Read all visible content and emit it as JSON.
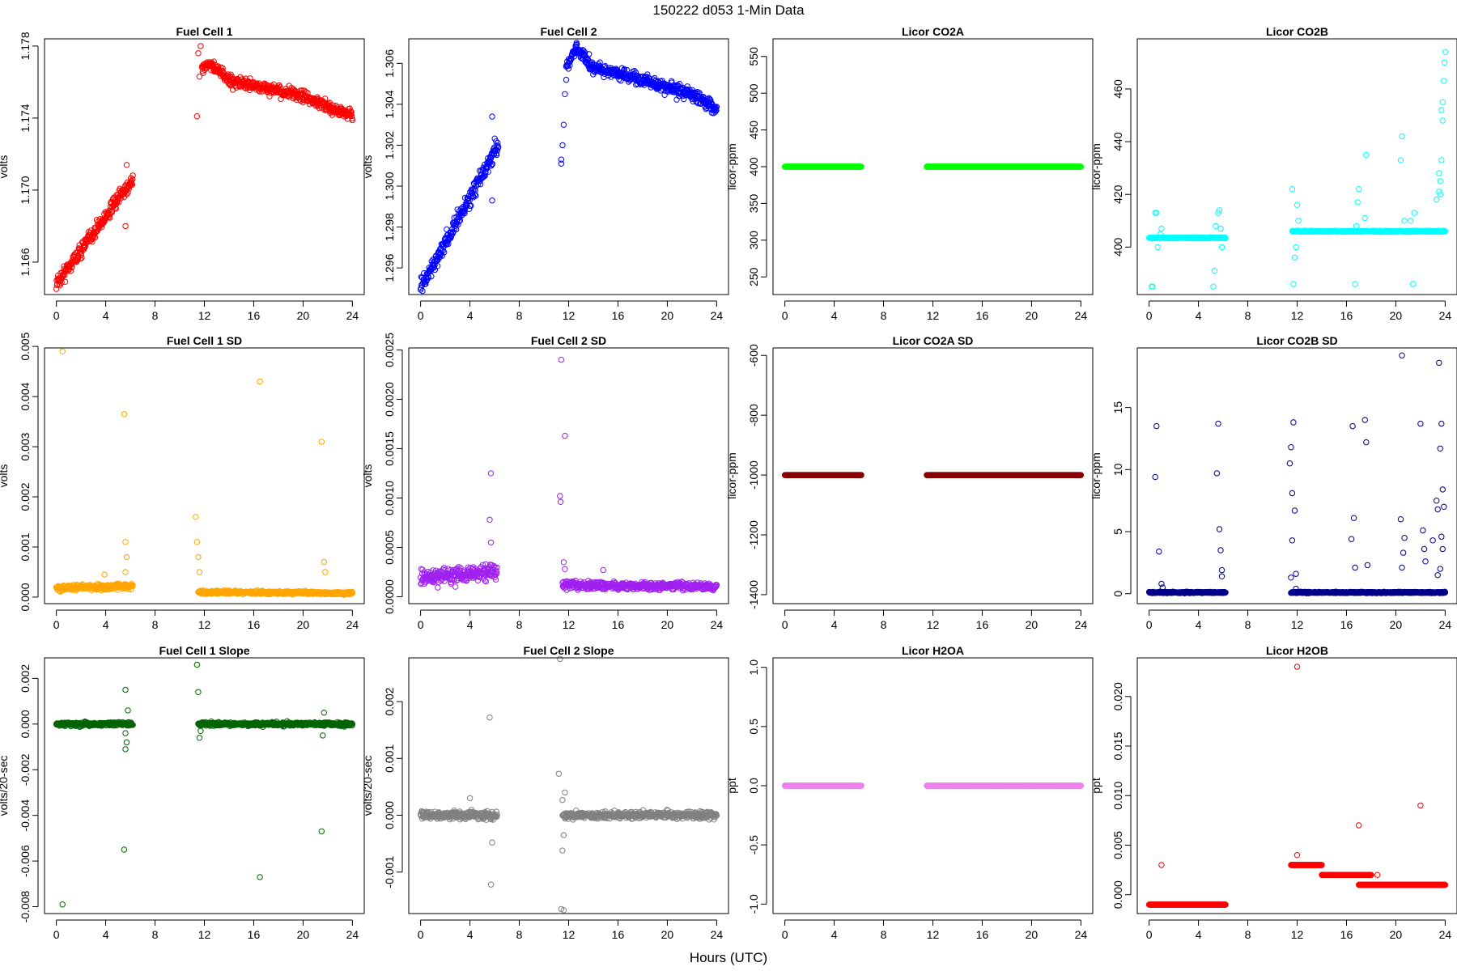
{
  "page": {
    "title": "150222   d053   1-Min Data",
    "xaxis_title": "Hours (UTC)"
  },
  "chart_data": [
    {
      "type": "scatter",
      "title": "Fuel Cell 1",
      "ylabel": "volts",
      "color": "#ff0000",
      "xlim": [
        -0.96,
        24.96
      ],
      "ylim": [
        1.1642,
        1.1784
      ],
      "yticks": [
        1.166,
        1.17,
        1.174,
        1.178
      ],
      "ytick_labels": [
        "1.166",
        "1.170",
        "1.174",
        "1.178"
      ],
      "segments": [
        {
          "x0": 0,
          "x1": 6.2,
          "y0": 1.1648,
          "y1": 1.1706,
          "noise": 0.0004
        },
        {
          "x0": 11.8,
          "x1": 24,
          "curve": [
            [
              11.8,
              1.1768
            ],
            [
              12.5,
              1.177
            ],
            [
              14,
              1.1761
            ],
            [
              16,
              1.1758
            ],
            [
              18,
              1.1755
            ],
            [
              20,
              1.1752
            ],
            [
              22,
              1.1746
            ],
            [
              24,
              1.1742
            ]
          ],
          "noise": 0.0003
        }
      ],
      "extra": [
        [
          11.4,
          1.1741
        ],
        [
          11.5,
          1.1776
        ],
        [
          11.6,
          1.1763
        ],
        [
          11.7,
          1.178
        ],
        [
          5.6,
          1.168
        ],
        [
          5.7,
          1.1714
        ],
        [
          11.9,
          1.1765
        ]
      ]
    },
    {
      "type": "scatter",
      "title": "Fuel Cell 2",
      "ylabel": "volts",
      "color": "#0000ff",
      "xlim": [
        -0.96,
        24.96
      ],
      "ylim": [
        1.2947,
        1.3072
      ],
      "yticks": [
        1.296,
        1.298,
        1.3,
        1.302,
        1.304,
        1.306
      ],
      "ytick_labels": [
        "1.296",
        "1.298",
        "1.300",
        "1.302",
        "1.304",
        "1.306"
      ],
      "segments": [
        {
          "x0": 0,
          "x1": 6.3,
          "y0": 1.295,
          "y1": 1.302,
          "noise": 0.0004
        },
        {
          "x0": 11.8,
          "x1": 24,
          "curve": [
            [
              11.8,
              1.3058
            ],
            [
              12.6,
              1.3068
            ],
            [
              14,
              1.3058
            ],
            [
              16,
              1.3055
            ],
            [
              18,
              1.3052
            ],
            [
              20,
              1.3048
            ],
            [
              22,
              1.3045
            ],
            [
              24,
              1.3038
            ]
          ],
          "noise": 0.0003
        }
      ],
      "extra": [
        [
          5.8,
          1.3034
        ],
        [
          5.8,
          1.2993
        ],
        [
          11.4,
          1.3011
        ],
        [
          11.4,
          1.3013
        ],
        [
          11.5,
          1.302
        ],
        [
          11.6,
          1.303
        ],
        [
          11.7,
          1.3045
        ],
        [
          11.8,
          1.3052
        ]
      ]
    },
    {
      "type": "scatter",
      "title": "Licor CO2A",
      "ylabel": "licor-ppm",
      "color": "#00ff00",
      "xlim": [
        -0.96,
        24.96
      ],
      "ylim": [
        226,
        574
      ],
      "yticks": [
        250,
        300,
        350,
        400,
        450,
        500,
        550
      ],
      "ytick_labels": [
        "250",
        "300",
        "350",
        "400",
        "450",
        "500",
        "550"
      ],
      "segments": [
        {
          "x0": 0,
          "x1": 6.2,
          "y0": 400,
          "y1": 400,
          "noise": 0
        },
        {
          "x0": 11.5,
          "x1": 24,
          "y0": 400,
          "y1": 400,
          "noise": 0
        }
      ],
      "extra": []
    },
    {
      "type": "scatter",
      "title": "Licor CO2B",
      "ylabel": "licor-ppm",
      "color": "#00ffff",
      "xlim": [
        -0.96,
        24.96
      ],
      "ylim": [
        382,
        479
      ],
      "yticks": [
        400,
        420,
        440,
        460
      ],
      "ytick_labels": [
        "400",
        "420",
        "440",
        "460"
      ],
      "segments": [
        {
          "x0": 0,
          "x1": 6.2,
          "y0": 403.5,
          "y1": 403.5,
          "noise": 0.2
        },
        {
          "x0": 11.6,
          "x1": 24,
          "y0": 406,
          "y1": 406,
          "noise": 0.2
        }
      ],
      "extra": [
        [
          0.2,
          385
        ],
        [
          0.3,
          385
        ],
        [
          0.5,
          413
        ],
        [
          0.6,
          413
        ],
        [
          0.7,
          400
        ],
        [
          0.9,
          405
        ],
        [
          1.0,
          407
        ],
        [
          5.2,
          385
        ],
        [
          5.3,
          391
        ],
        [
          5.4,
          408
        ],
        [
          5.6,
          413
        ],
        [
          5.7,
          414
        ],
        [
          5.8,
          407
        ],
        [
          5.9,
          400
        ],
        [
          11.6,
          422
        ],
        [
          11.7,
          386
        ],
        [
          11.8,
          396
        ],
        [
          11.9,
          400
        ],
        [
          12.0,
          416
        ],
        [
          12.1,
          410
        ],
        [
          16.7,
          386
        ],
        [
          16.8,
          408
        ],
        [
          16.9,
          417
        ],
        [
          17.0,
          422
        ],
        [
          17.5,
          411
        ],
        [
          17.6,
          435
        ],
        [
          20.4,
          433
        ],
        [
          20.5,
          442
        ],
        [
          20.7,
          410
        ],
        [
          21.2,
          410
        ],
        [
          21.4,
          386
        ],
        [
          21.5,
          413
        ],
        [
          22.5,
          406
        ],
        [
          23.3,
          418
        ],
        [
          23.5,
          428
        ],
        [
          23.6,
          425
        ],
        [
          23.7,
          433
        ],
        [
          23.8,
          448
        ],
        [
          23.9,
          463
        ],
        [
          24.0,
          474
        ],
        [
          23.95,
          470
        ],
        [
          23.8,
          455
        ],
        [
          23.7,
          452
        ],
        [
          23.6,
          420
        ],
        [
          23.5,
          421
        ]
      ]
    },
    {
      "type": "scatter",
      "title": "Fuel Cell 1 SD",
      "ylabel": "volts",
      "color": "#ffa500",
      "xlim": [
        -0.96,
        24.96
      ],
      "ylim": [
        -0.00013,
        0.00497
      ],
      "yticks": [
        0,
        0.001,
        0.002,
        0.003,
        0.004,
        0.005
      ],
      "ytick_labels": [
        "0.000",
        "0.001",
        "0.002",
        "0.003",
        "0.004",
        "0.005"
      ],
      "segments": [
        {
          "x0": 0,
          "x1": 6.2,
          "y0": 0.00018,
          "y1": 0.00022,
          "noise": 6e-05
        },
        {
          "x0": 11.5,
          "x1": 24,
          "y0": 0.0001,
          "y1": 8e-05,
          "noise": 3e-05
        }
      ],
      "extra": [
        [
          0.5,
          0.0049
        ],
        [
          5.5,
          0.00365
        ],
        [
          5.6,
          0.0011
        ],
        [
          5.7,
          0.0008
        ],
        [
          5.6,
          0.0005
        ],
        [
          3.9,
          0.00045
        ],
        [
          11.3,
          0.0016
        ],
        [
          11.4,
          0.0011
        ],
        [
          11.5,
          0.0008
        ],
        [
          11.6,
          0.0005
        ],
        [
          16.5,
          0.0043
        ],
        [
          21.5,
          0.0031
        ],
        [
          21.7,
          0.0007
        ],
        [
          21.8,
          0.0005
        ]
      ]
    },
    {
      "type": "scatter",
      "title": "Fuel Cell 2 SD",
      "ylabel": "volts",
      "color": "#a020f0",
      "xlim": [
        -0.96,
        24.96
      ],
      "ylim": [
        -7e-05,
        0.00252
      ],
      "yticks": [
        0,
        0.0005,
        0.001,
        0.0015,
        0.002,
        0.0025
      ],
      "ytick_labels": [
        "0.0000",
        "0.0005",
        "0.0010",
        "0.0015",
        "0.0020",
        "0.0025"
      ],
      "segments": [
        {
          "x0": 0,
          "x1": 6.2,
          "y0": 0.0002,
          "y1": 0.00025,
          "noise": 8e-05
        },
        {
          "x0": 11.5,
          "x1": 24,
          "y0": 0.00012,
          "y1": 0.0001,
          "noise": 4e-05
        }
      ],
      "extra": [
        [
          5.7,
          0.00125
        ],
        [
          5.6,
          0.00078
        ],
        [
          5.7,
          0.00055
        ],
        [
          11.4,
          0.0024
        ],
        [
          11.7,
          0.00163
        ],
        [
          11.3,
          0.00102
        ],
        [
          11.35,
          0.00096
        ],
        [
          11.6,
          0.00035
        ],
        [
          11.7,
          0.00028
        ],
        [
          14.8,
          0.00027
        ]
      ]
    },
    {
      "type": "scatter",
      "title": "Licor CO2A SD",
      "ylabel": "licor-ppm",
      "color": "#8b0000",
      "xlim": [
        -0.96,
        24.96
      ],
      "ylim": [
        -1430,
        -575
      ],
      "yticks": [
        -1400,
        -1200,
        -1000,
        -800,
        -600
      ],
      "ytick_labels": [
        "-1400",
        "-1200",
        "-1000",
        "-800",
        "-600"
      ],
      "segments": [
        {
          "x0": 0,
          "x1": 6.2,
          "y0": -1000,
          "y1": -1000,
          "noise": 0
        },
        {
          "x0": 11.5,
          "x1": 24,
          "y0": -1000,
          "y1": -1000,
          "noise": 0
        }
      ],
      "extra": []
    },
    {
      "type": "scatter",
      "title": "Licor CO2B SD",
      "ylabel": "licor-ppm",
      "color": "#00008b",
      "xlim": [
        -0.96,
        24.96
      ],
      "ylim": [
        -0.8,
        19.8
      ],
      "yticks": [
        0,
        5,
        10,
        15
      ],
      "ytick_labels": [
        "0",
        "5",
        "10",
        "15"
      ],
      "segments": [
        {
          "x0": 0,
          "x1": 6.2,
          "y0": 0.1,
          "y1": 0.1,
          "noise": 0.05
        },
        {
          "x0": 11.5,
          "x1": 24,
          "y0": 0.1,
          "y1": 0.1,
          "noise": 0.05
        }
      ],
      "extra": [
        [
          0.5,
          9.4
        ],
        [
          0.6,
          13.5
        ],
        [
          0.8,
          3.4
        ],
        [
          1.0,
          0.8
        ],
        [
          1.1,
          0.5
        ],
        [
          5.5,
          9.7
        ],
        [
          5.6,
          13.7
        ],
        [
          5.7,
          5.2
        ],
        [
          5.8,
          3.5
        ],
        [
          5.9,
          1.9
        ],
        [
          5.9,
          1.4
        ],
        [
          11.4,
          10.5
        ],
        [
          11.5,
          11.8
        ],
        [
          11.6,
          8.1
        ],
        [
          11.6,
          4.3
        ],
        [
          11.7,
          13.8
        ],
        [
          11.8,
          6.7
        ],
        [
          11.9,
          1.6
        ],
        [
          11.9,
          0.4
        ],
        [
          11.5,
          1.3
        ],
        [
          16.5,
          13.5
        ],
        [
          16.6,
          6.1
        ],
        [
          16.7,
          2.1
        ],
        [
          16.4,
          4.4
        ],
        [
          17.5,
          14.0
        ],
        [
          17.6,
          12.2
        ],
        [
          17.7,
          2.3
        ],
        [
          20.5,
          19.2
        ],
        [
          20.4,
          6.0
        ],
        [
          20.6,
          3.3
        ],
        [
          20.5,
          2.1
        ],
        [
          20.7,
          4.5
        ],
        [
          22.0,
          13.7
        ],
        [
          22.2,
          5.1
        ],
        [
          22.4,
          2.6
        ],
        [
          22.3,
          3.6
        ],
        [
          23.0,
          4.3
        ],
        [
          23.3,
          7.5
        ],
        [
          23.4,
          6.8
        ],
        [
          23.5,
          18.6
        ],
        [
          23.6,
          11.7
        ],
        [
          23.7,
          13.7
        ],
        [
          23.8,
          8.4
        ],
        [
          23.9,
          7.0
        ],
        [
          23.7,
          4.6
        ],
        [
          23.8,
          3.6
        ],
        [
          23.6,
          2.0
        ],
        [
          23.4,
          1.5
        ]
      ]
    },
    {
      "type": "scatter",
      "title": "Fuel Cell 1 Slope",
      "ylabel": "volts/20-sec",
      "color": "#006400",
      "xlim": [
        -0.96,
        24.96
      ],
      "ylim": [
        -0.0083,
        0.0029
      ],
      "yticks": [
        -0.008,
        -0.006,
        -0.004,
        -0.002,
        0,
        0.002
      ],
      "ytick_labels": [
        "-0.008",
        "-0.006",
        "-0.004",
        "-0.002",
        "0.000",
        "0.002"
      ],
      "segments": [
        {
          "x0": 0,
          "x1": 6.2,
          "y0": 0,
          "y1": 0,
          "noise": 8e-05
        },
        {
          "x0": 11.5,
          "x1": 24,
          "y0": 0,
          "y1": 0,
          "noise": 8e-05
        }
      ],
      "extra": [
        [
          0.5,
          -0.0079
        ],
        [
          5.5,
          -0.0055
        ],
        [
          5.6,
          0.0015
        ],
        [
          5.6,
          -0.0011
        ],
        [
          5.7,
          -0.0008
        ],
        [
          5.8,
          0.0006
        ],
        [
          5.6,
          -0.0004
        ],
        [
          11.4,
          0.0026
        ],
        [
          11.5,
          0.0014
        ],
        [
          11.6,
          -0.0006
        ],
        [
          11.7,
          -0.0003
        ],
        [
          16.5,
          -0.0067
        ],
        [
          21.5,
          -0.0047
        ],
        [
          21.6,
          -0.0005
        ],
        [
          21.7,
          0.0005
        ]
      ]
    },
    {
      "type": "scatter",
      "title": "Fuel Cell 2 Slope",
      "ylabel": "volts/20-sec",
      "color": "#808080",
      "xlim": [
        -0.96,
        24.96
      ],
      "ylim": [
        -0.00173,
        0.00277
      ],
      "yticks": [
        -0.001,
        0,
        0.001,
        0.002
      ],
      "ytick_labels": [
        "-0.001",
        "0.000",
        "0.001",
        "0.002"
      ],
      "segments": [
        {
          "x0": 0,
          "x1": 6.2,
          "y0": 0,
          "y1": 0,
          "noise": 7e-05
        },
        {
          "x0": 11.5,
          "x1": 24,
          "y0": 0,
          "y1": 0,
          "noise": 6e-05
        }
      ],
      "extra": [
        [
          5.6,
          0.00172
        ],
        [
          5.7,
          -0.00122
        ],
        [
          5.8,
          -0.00048
        ],
        [
          4.0,
          0.0003
        ],
        [
          11.2,
          0.00073
        ],
        [
          11.3,
          0.00275
        ],
        [
          11.4,
          -0.00165
        ],
        [
          11.6,
          -0.00167
        ],
        [
          11.5,
          -0.00062
        ],
        [
          11.6,
          -0.00035
        ],
        [
          11.7,
          0.0004
        ],
        [
          11.5,
          0.00027
        ]
      ]
    },
    {
      "type": "scatter",
      "title": "Licor H2OA",
      "ylabel": "ppt",
      "color": "#ee82ee",
      "xlim": [
        -0.96,
        24.96
      ],
      "ylim": [
        -1.08,
        1.08
      ],
      "yticks": [
        -1.0,
        -0.5,
        0,
        0.5,
        1.0
      ],
      "ytick_labels": [
        "-1.0",
        "-0.5",
        "0.0",
        "0.5",
        "1.0"
      ],
      "segments": [
        {
          "x0": 0,
          "x1": 6.2,
          "y0": 0,
          "y1": 0,
          "noise": 0
        },
        {
          "x0": 11.5,
          "x1": 24,
          "y0": 0,
          "y1": 0,
          "noise": 0
        }
      ],
      "extra": []
    },
    {
      "type": "scatter",
      "title": "Licor H2OB",
      "ylabel": "ppt",
      "color": "#ff0000",
      "xlim": [
        -0.96,
        24.96
      ],
      "ylim": [
        -0.0019,
        0.0239
      ],
      "yticks": [
        0,
        0.005,
        0.01,
        0.015,
        0.02
      ],
      "ytick_labels": [
        "0.000",
        "0.005",
        "0.010",
        "0.015",
        "0.020"
      ],
      "segments": [
        {
          "x0": 0,
          "x1": 6.2,
          "y0": -0.001,
          "y1": -0.001,
          "noise": 0
        },
        {
          "x0": 11.5,
          "x1": 14.0,
          "y0": 0.003,
          "y1": 0.003,
          "noise": 0
        },
        {
          "x0": 14.0,
          "x1": 18.0,
          "y0": 0.002,
          "y1": 0.002,
          "noise": 0
        },
        {
          "x0": 17.0,
          "x1": 24,
          "y0": 0.001,
          "y1": 0.001,
          "noise": 0
        }
      ],
      "extra": [
        [
          1.0,
          0.003
        ],
        [
          12.0,
          0.023
        ],
        [
          12.0,
          0.004
        ],
        [
          17.0,
          0.007
        ],
        [
          18.5,
          0.002
        ],
        [
          22.0,
          0.009
        ]
      ]
    }
  ]
}
